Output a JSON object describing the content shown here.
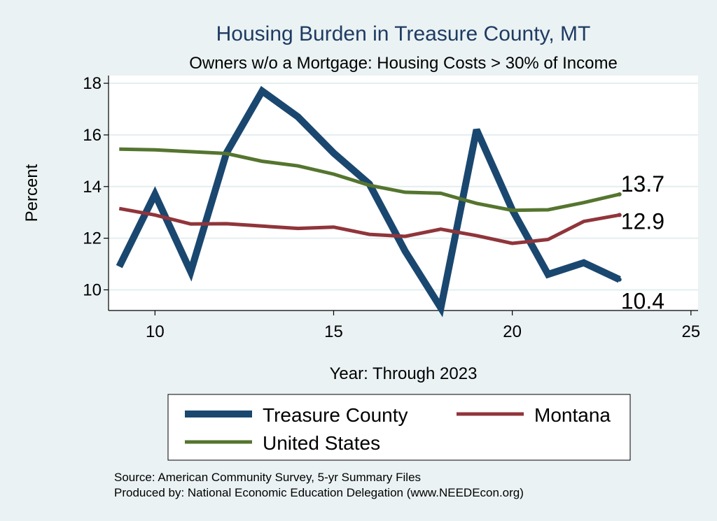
{
  "chart_data": {
    "type": "line",
    "title": "Housing Burden in Treasure County, MT",
    "subtitle": "Owners w/o a Mortgage: Housing Costs > 30% of Income",
    "xlabel": "Year: Through 2023",
    "ylabel": "Percent",
    "xlim": [
      8.7,
      25.2
    ],
    "ylim": [
      9.2,
      18.3
    ],
    "xticks": [
      10,
      15,
      20,
      25
    ],
    "yticks": [
      10,
      12,
      14,
      16,
      18
    ],
    "grid": true,
    "legend_position": "bottom",
    "series": [
      {
        "name": "Treasure County",
        "color": "#1a476f",
        "x": [
          9,
          10,
          11,
          12,
          13,
          14,
          15,
          16,
          17,
          18,
          19,
          20,
          21,
          22,
          23
        ],
        "values": [
          10.9,
          13.7,
          10.7,
          15.3,
          17.7,
          16.7,
          15.3,
          14.1,
          11.5,
          9.3,
          16.2,
          13.1,
          10.6,
          11.05,
          10.4
        ],
        "end_label": "10.4"
      },
      {
        "name": "Montana",
        "color": "#90353b",
        "x": [
          9,
          10,
          11,
          12,
          13,
          14,
          15,
          16,
          17,
          18,
          19,
          20,
          21,
          22,
          23
        ],
        "values": [
          13.15,
          12.9,
          12.55,
          12.56,
          12.47,
          12.38,
          12.43,
          12.15,
          12.07,
          12.35,
          12.1,
          11.8,
          11.95,
          12.65,
          12.9
        ],
        "end_label": "12.9"
      },
      {
        "name": "United States",
        "color": "#55752f",
        "x": [
          9,
          10,
          11,
          12,
          13,
          14,
          15,
          16,
          17,
          18,
          19,
          20,
          21,
          22,
          23
        ],
        "values": [
          15.45,
          15.42,
          15.35,
          15.28,
          14.98,
          14.8,
          14.48,
          14.05,
          13.78,
          13.74,
          13.35,
          13.08,
          13.1,
          13.38,
          13.7
        ],
        "end_label": "13.7"
      }
    ]
  },
  "notes": {
    "source": "Source: American Community Survey, 5-yr Summary Files",
    "produced": "Produced by: National Economic Education Delegation (www.NEEDEcon.org)"
  }
}
